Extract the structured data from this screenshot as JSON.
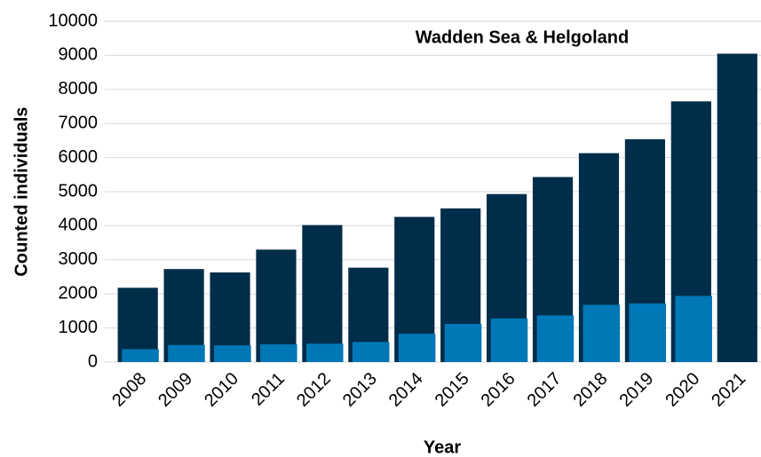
{
  "chart_data": {
    "type": "bar",
    "title": "Wadden Sea & Helgoland",
    "x_label": "Year",
    "y_label": "Counted individuals",
    "categories": [
      "2008",
      "2009",
      "2010",
      "2011",
      "2012",
      "2013",
      "2014",
      "2015",
      "2016",
      "2017",
      "2018",
      "2019",
      "2020",
      "2021"
    ],
    "series": [
      {
        "color": "#002d4a",
        "values": [
          2180,
          2730,
          2630,
          3300,
          4020,
          2770,
          4260,
          4510,
          4930,
          5430,
          6130,
          6540,
          7650,
          9050
        ]
      },
      {
        "color": "#0077b6",
        "values": [
          380,
          500,
          490,
          520,
          540,
          590,
          830,
          1120,
          1280,
          1370,
          1680,
          1720,
          1940,
          null
        ]
      }
    ],
    "ylim": [
      0,
      10000
    ],
    "yticks": [
      0,
      1000,
      2000,
      3000,
      4000,
      5000,
      6000,
      7000,
      8000,
      9000,
      10000
    ],
    "grid": true
  }
}
